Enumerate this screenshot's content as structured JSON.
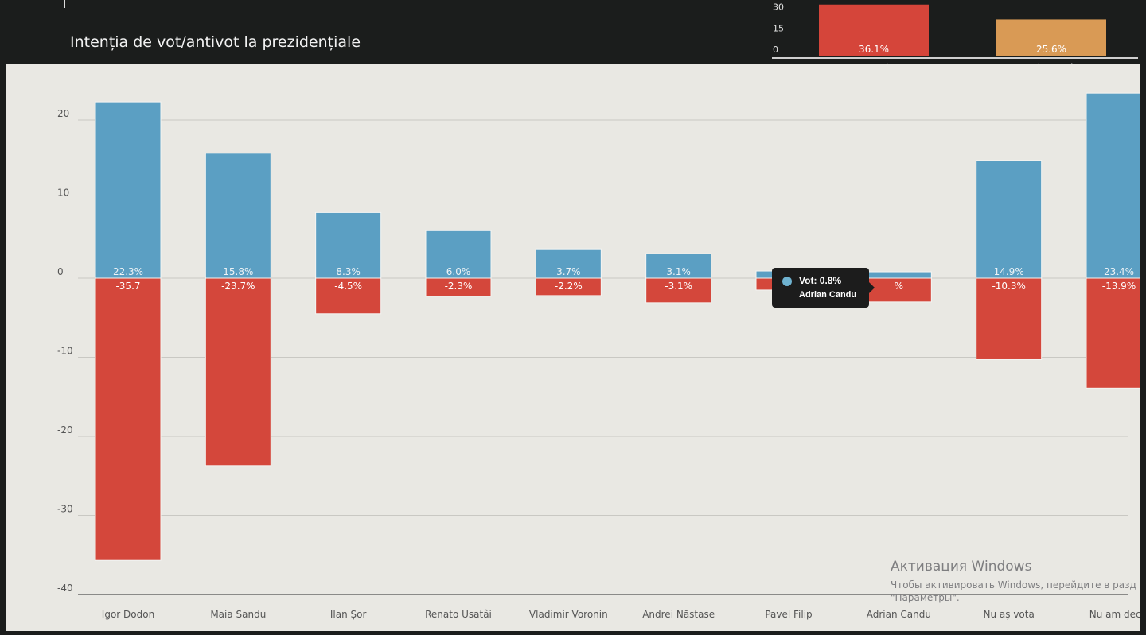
{
  "header": {
    "title": "Intenția de vot/antivot la prezidențiale"
  },
  "colors": {
    "vote": "#5b9fc3",
    "antivote": "#d4473b",
    "mini_first": "#d5453a",
    "mini_second": "#d99a55"
  },
  "chart_data": [
    {
      "type": "bar",
      "title": "Intenția de vot/antivot la prezidențiale",
      "categories": [
        "Igor Dodon",
        "Maia Sandu",
        "Ilan Șor",
        "Renato Usatâi",
        "Vladimir Voronin",
        "Andrei Năstase",
        "Pavel Filip",
        "Adrian Candu",
        "Nu aș vota",
        "Nu am decis"
      ],
      "series": [
        {
          "name": "Vot",
          "values": [
            22.3,
            15.8,
            8.3,
            6.0,
            3.7,
            3.1,
            0.9,
            0.8,
            14.9,
            23.4
          ],
          "labels": [
            "22.3%",
            "15.8%",
            "8.3%",
            "6.0%",
            "3.7%",
            "3.1%",
            "",
            "",
            "14.9%",
            "23.4%"
          ]
        },
        {
          "name": "Antivot",
          "values": [
            -35.7,
            -23.7,
            -4.5,
            -2.3,
            -2.2,
            -3.1,
            -1.5,
            -3.0,
            -10.3,
            -13.9
          ],
          "labels": [
            "-35.7",
            "-23.7%",
            "-4.5%",
            "-2.3%",
            "-2.2%",
            "-3.1%",
            "",
            "%",
            "-10.3%",
            "-13.9%"
          ]
        }
      ],
      "yticks": [
        20,
        10,
        0,
        -10,
        -20,
        -30,
        -40
      ],
      "ylim": [
        -40,
        22.5
      ],
      "grid": true
    },
    {
      "type": "bar",
      "categories": [
        "Igor Dodon",
        "Maia Sandu"
      ],
      "values": [
        36.1,
        25.6
      ],
      "labels": [
        "36.1%",
        "25.6%"
      ],
      "yticks": [
        30,
        15,
        0
      ]
    }
  ],
  "tooltip": {
    "value_line": "Vot: 0.8%",
    "name_line": "Adrian Candu"
  },
  "watermark": {
    "title": "Активация Windows",
    "line1": "Чтобы активировать Windows, перейдите в разд",
    "line2": "\"Параметры\"."
  }
}
